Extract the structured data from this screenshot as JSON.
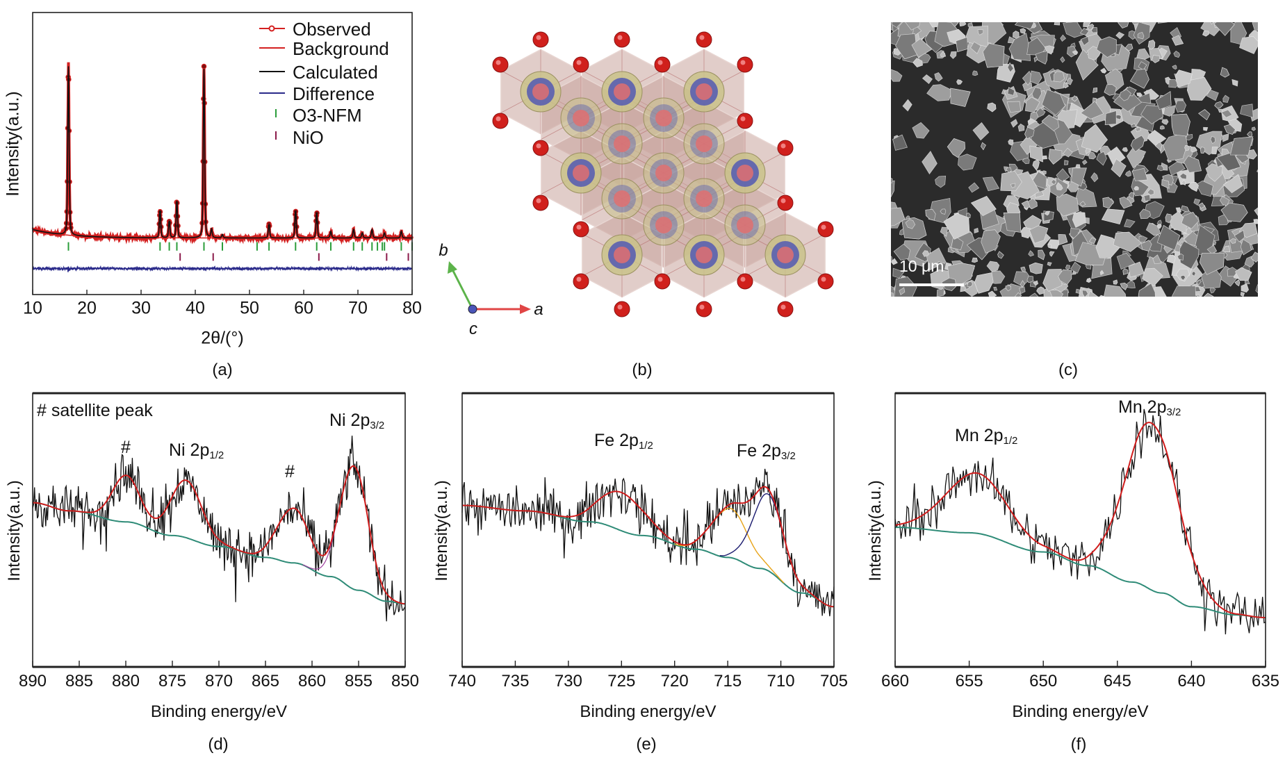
{
  "panel_labels": {
    "a": "(a)",
    "b": "(b)",
    "c": "(c)",
    "d": "(d)",
    "e": "(e)",
    "f": "(f)"
  },
  "structure": {
    "axis_labels": {
      "a": "a",
      "b": "b",
      "c": "c"
    },
    "colors": {
      "oxygen": "#d0201c",
      "polyhedra": "#c9a49c",
      "site_outer": "#c9c28a",
      "site_inner": "#5a5fb0",
      "axis_a": "#e04545",
      "axis_b": "#5cb34a",
      "axis_c": "#4a55b8"
    }
  },
  "sem": {
    "scale_bar": "10 μm"
  },
  "chart_data": [
    {
      "panel": "a",
      "type": "line",
      "title": "",
      "xlabel": "2θ/(°)",
      "ylabel": "Intensity(a.u.)",
      "xlim": [
        10,
        80
      ],
      "ylim": [
        -33,
        134
      ],
      "xticks": [
        "10",
        "20",
        "30",
        "40",
        "50",
        "60",
        "70",
        "80"
      ],
      "grid": false,
      "legend_position": "top-right",
      "legend": [
        {
          "name": "Observed",
          "color": "#d42020",
          "style": "line-circle"
        },
        {
          "name": "Background",
          "color": "#d42020",
          "style": "line"
        },
        {
          "name": "Calculated",
          "color": "#111111",
          "style": "line"
        },
        {
          "name": "Difference",
          "color": "#2a2a8a",
          "style": "line"
        },
        {
          "name": "O3-NFM",
          "color": "#2a9d3a",
          "style": "tick"
        },
        {
          "name": "NiO",
          "color": "#8b1a4a",
          "style": "tick"
        }
      ],
      "peaks": [
        {
          "two_theta": 16.6,
          "intensity": 100
        },
        {
          "two_theta": 33.5,
          "intensity": 16
        },
        {
          "two_theta": 35.2,
          "intensity": 10
        },
        {
          "two_theta": 36.6,
          "intensity": 22
        },
        {
          "two_theta": 41.6,
          "intensity": 100
        },
        {
          "two_theta": 43.0,
          "intensity": 5
        },
        {
          "two_theta": 45.0,
          "intensity": 2
        },
        {
          "two_theta": 53.6,
          "intensity": 8
        },
        {
          "two_theta": 58.5,
          "intensity": 16
        },
        {
          "two_theta": 62.4,
          "intensity": 15
        },
        {
          "two_theta": 65.0,
          "intensity": 4
        },
        {
          "two_theta": 69.2,
          "intensity": 5
        },
        {
          "two_theta": 70.8,
          "intensity": 3
        },
        {
          "two_theta": 72.6,
          "intensity": 5
        },
        {
          "two_theta": 74.9,
          "intensity": 3
        },
        {
          "two_theta": 78.0,
          "intensity": 4
        }
      ],
      "reflections": {
        "O3-NFM": [
          16.6,
          33.5,
          35.2,
          36.6,
          41.6,
          45.0,
          51.4,
          53.6,
          58.5,
          62.4,
          65.0,
          69.2,
          70.8,
          72.6,
          73.6,
          74.5,
          74.9,
          78.0,
          80.0
        ],
        "NiO": [
          37.2,
          43.3,
          62.8,
          75.3,
          79.3
        ]
      }
    },
    {
      "panel": "d",
      "type": "line",
      "xlabel": "Binding energy/eV",
      "ylabel": "Intensity(a.u.)",
      "xlim": [
        890,
        850
      ],
      "ylim": [
        0,
        100
      ],
      "xticks": [
        "890",
        "885",
        "880",
        "875",
        "870",
        "865",
        "860",
        "855",
        "850"
      ],
      "colors": {
        "data": "#111111",
        "fit": "#d01c1c",
        "background": "#2e8b77",
        "component": "#a040a0"
      },
      "background": [
        [
          890,
          60
        ],
        [
          886,
          57
        ],
        [
          880,
          53
        ],
        [
          875,
          48
        ],
        [
          870,
          44
        ],
        [
          865,
          40
        ],
        [
          862,
          38
        ],
        [
          858,
          33
        ],
        [
          855,
          28
        ],
        [
          852,
          24
        ],
        [
          850,
          23
        ]
      ],
      "peaks": [
        {
          "center": 880.0,
          "amplitude": 17,
          "fwhm": 3.5
        },
        {
          "center": 873.5,
          "amplitude": 21,
          "fwhm": 4
        },
        {
          "center": 862.0,
          "amplitude": 20,
          "fwhm": 4
        },
        {
          "center": 855.5,
          "amplitude": 45,
          "fwhm": 3.5
        }
      ],
      "annotations": [
        {
          "text": "# satellite peak",
          "sub": ""
        },
        {
          "text": "#",
          "sub": ""
        },
        {
          "text": "Ni 2p",
          "sub": "1/2"
        },
        {
          "text": "#",
          "sub": ""
        },
        {
          "text": "Ni 2p",
          "sub": "3/2"
        }
      ]
    },
    {
      "panel": "e",
      "type": "line",
      "xlabel": "Binding energy/eV",
      "ylabel": "Intensity(a.u.)",
      "xlim": [
        740,
        705
      ],
      "ylim": [
        0,
        100
      ],
      "xticks": [
        "740",
        "735",
        "730",
        "725",
        "720",
        "715",
        "710",
        "705"
      ],
      "colors": {
        "data": "#111111",
        "fit": "#d01c1c",
        "background": "#2e8b77",
        "component_1": "#e8a317",
        "component_2": "#1a1a6e"
      },
      "background": [
        [
          740,
          59
        ],
        [
          734,
          57
        ],
        [
          728,
          53
        ],
        [
          723,
          48
        ],
        [
          718,
          43
        ],
        [
          715,
          40
        ],
        [
          712,
          36
        ],
        [
          708,
          27
        ],
        [
          705,
          22
        ]
      ],
      "peaks": [
        {
          "center": 725.0,
          "amplitude": 14,
          "fwhm": 5
        },
        {
          "center": 714.8,
          "amplitude": 18,
          "fwhm": 4
        },
        {
          "center": 711.2,
          "amplitude": 28,
          "fwhm": 3.5
        }
      ],
      "annotations": [
        {
          "text": "Fe 2p",
          "sub": "1/2"
        },
        {
          "text": "Fe 2p",
          "sub": "3/2"
        }
      ]
    },
    {
      "panel": "f",
      "type": "line",
      "xlabel": "Binding energy/eV",
      "ylabel": "Intensity(a.u.)",
      "xlim": [
        660,
        635
      ],
      "ylim": [
        0,
        100
      ],
      "xticks": [
        "660",
        "655",
        "650",
        "645",
        "640",
        "635"
      ],
      "colors": {
        "data": "#111111",
        "fit": "#d01c1c",
        "background": "#2e8b77"
      },
      "background": [
        [
          660,
          51
        ],
        [
          655,
          49
        ],
        [
          650,
          42
        ],
        [
          647,
          37
        ],
        [
          644,
          31
        ],
        [
          642,
          27
        ],
        [
          640,
          22
        ],
        [
          637,
          19
        ],
        [
          635,
          18
        ]
      ],
      "peaks": [
        {
          "center": 654.5,
          "amplitude": 22,
          "fwhm": 5
        },
        {
          "center": 642.7,
          "amplitude": 61,
          "fwhm": 4.2
        }
      ],
      "annotations": [
        {
          "text": "Mn 2p",
          "sub": "1/2"
        },
        {
          "text": "Mn 2p",
          "sub": "3/2"
        }
      ]
    }
  ]
}
